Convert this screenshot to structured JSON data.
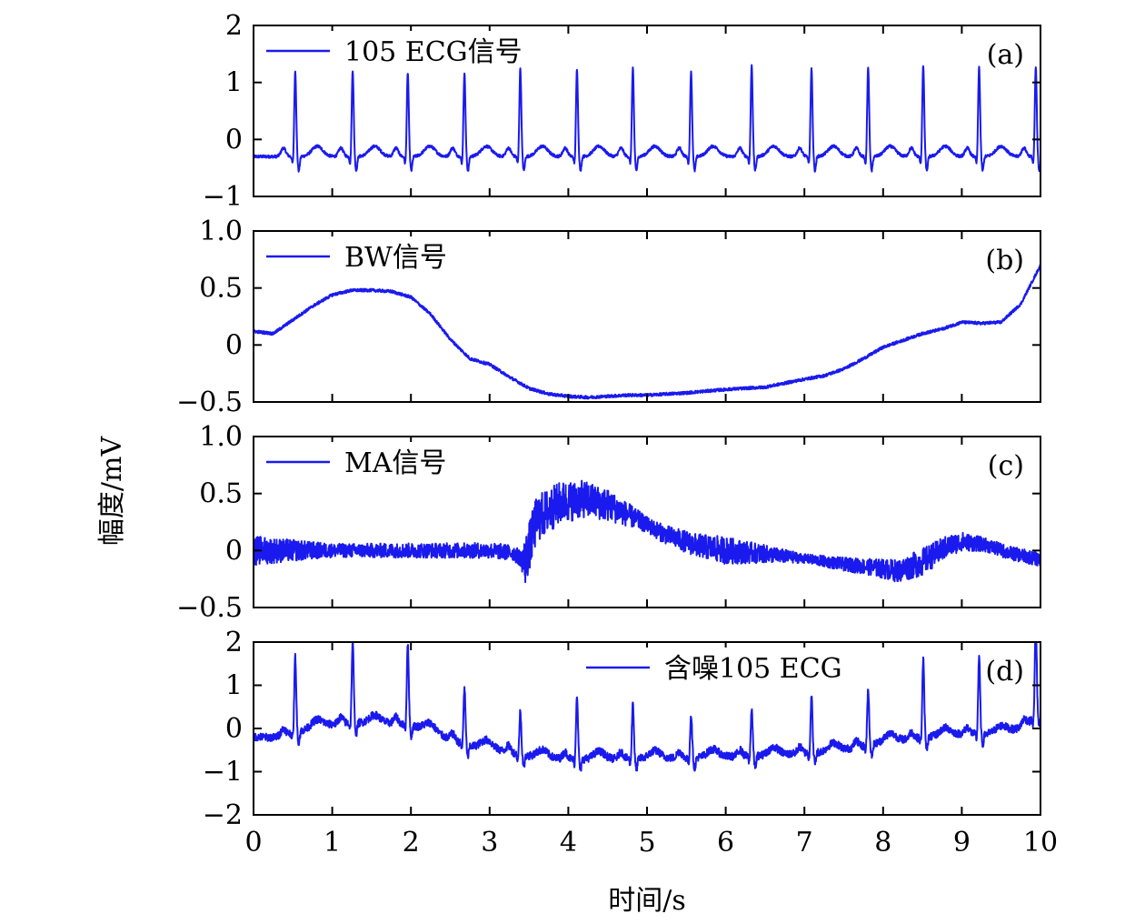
{
  "chart_data": {
    "type": "line",
    "xlabel": "时间/s",
    "ylabel": "幅度/mV",
    "xlim": [
      0,
      10
    ],
    "xticks": [
      0,
      1,
      2,
      3,
      4,
      5,
      6,
      7,
      8,
      9,
      10
    ],
    "line_color": "#1a1aee",
    "panels": [
      {
        "label": "(a)",
        "legend": "105 ECG信号",
        "legend_position": "top-left",
        "ylim": [
          -1,
          2
        ],
        "yticks": [
          2,
          1,
          0,
          -1
        ],
        "ytick_labels": [
          "2",
          "1",
          "0",
          "−1"
        ],
        "series": {
          "kind": "ecg",
          "beats": [
            0.53,
            1.26,
            1.96,
            2.68,
            3.39,
            4.11,
            4.82,
            5.56,
            6.33,
            7.09,
            7.81,
            8.51,
            9.22,
            9.94
          ],
          "r_peaks": [
            1.2,
            1.22,
            1.17,
            1.17,
            1.25,
            1.24,
            1.25,
            1.2,
            1.3,
            1.25,
            1.27,
            1.3,
            1.27,
            1.27
          ],
          "baseline": -0.3
        }
      },
      {
        "label": "(b)",
        "legend": "BW信号",
        "legend_position": "top-left",
        "ylim": [
          -0.5,
          1.0
        ],
        "yticks": [
          1.0,
          0.5,
          0,
          -0.5
        ],
        "ytick_labels": [
          "1.0",
          "0.5",
          "0",
          "−0.5"
        ],
        "series": {
          "kind": "baseline-wander",
          "x": [
            0,
            0.25,
            0.5,
            0.75,
            1.0,
            1.25,
            1.5,
            1.75,
            2.0,
            2.25,
            2.5,
            2.75,
            3.0,
            3.25,
            3.5,
            3.75,
            4.0,
            4.25,
            4.5,
            4.75,
            5.0,
            5.5,
            6.0,
            6.5,
            7.0,
            7.25,
            7.5,
            7.75,
            8.0,
            8.25,
            8.5,
            8.75,
            9.0,
            9.25,
            9.5,
            9.75,
            10.0
          ],
          "y": [
            0.12,
            0.1,
            0.22,
            0.34,
            0.44,
            0.48,
            0.48,
            0.47,
            0.42,
            0.27,
            0.05,
            -0.12,
            -0.17,
            -0.28,
            -0.38,
            -0.43,
            -0.45,
            -0.46,
            -0.45,
            -0.44,
            -0.44,
            -0.42,
            -0.39,
            -0.37,
            -0.3,
            -0.27,
            -0.21,
            -0.12,
            -0.02,
            0.04,
            0.1,
            0.14,
            0.2,
            0.19,
            0.2,
            0.36,
            0.7
          ]
        }
      },
      {
        "label": "(c)",
        "legend": "MA信号",
        "legend_position": "top-left",
        "ylim": [
          -0.5,
          1.0
        ],
        "yticks": [
          1.0,
          0.5,
          0,
          -0.5
        ],
        "ytick_labels": [
          "1.0",
          "0.5",
          "0",
          "−0.5"
        ],
        "series": {
          "kind": "muscle-artifact",
          "x": [
            0,
            0.5,
            1.0,
            1.5,
            2.0,
            2.5,
            3.0,
            3.3,
            3.45,
            3.6,
            3.9,
            4.2,
            4.5,
            4.8,
            5.2,
            5.6,
            6.0,
            6.5,
            7.0,
            7.5,
            7.9,
            8.2,
            8.5,
            8.8,
            9.0,
            9.3,
            9.6,
            10.0
          ],
          "y": [
            0.0,
            0.0,
            0.0,
            0.0,
            0.0,
            0.0,
            0.0,
            -0.02,
            -0.1,
            0.28,
            0.42,
            0.45,
            0.4,
            0.3,
            0.15,
            0.05,
            0.0,
            -0.03,
            -0.07,
            -0.12,
            -0.15,
            -0.18,
            -0.1,
            0.03,
            0.08,
            0.05,
            -0.02,
            -0.08
          ],
          "noise_x": [
            0,
            1.0,
            3.4,
            3.45,
            4.5,
            5.0,
            6.0,
            6.6,
            7.0,
            7.8,
            8.2,
            8.5,
            9.3,
            10.0
          ],
          "noise_amp": [
            0.13,
            0.06,
            0.07,
            0.22,
            0.14,
            0.07,
            0.12,
            0.07,
            0.04,
            0.07,
            0.1,
            0.12,
            0.06,
            0.06
          ]
        }
      },
      {
        "label": "(d)",
        "legend": "含噪105 ECG",
        "legend_position": "top-center",
        "ylim": [
          -2,
          2
        ],
        "yticks": [
          2,
          1,
          0,
          -1,
          -2
        ],
        "ytick_labels": [
          "2",
          "1",
          "0",
          "−1",
          "−2"
        ],
        "series": {
          "kind": "ecg-noisy",
          "beats": [
            0.53,
            1.26,
            1.96,
            2.68,
            3.39,
            4.11,
            4.82,
            5.56,
            6.33,
            7.09,
            7.81,
            8.51,
            9.22,
            9.94
          ],
          "r_peaks": [
            1.45,
            1.6,
            1.6,
            1.0,
            0.7,
            1.2,
            1.0,
            0.7,
            0.8,
            1.0,
            1.0,
            1.5,
            1.5,
            1.9
          ],
          "baseline": -0.3
        }
      }
    ]
  }
}
